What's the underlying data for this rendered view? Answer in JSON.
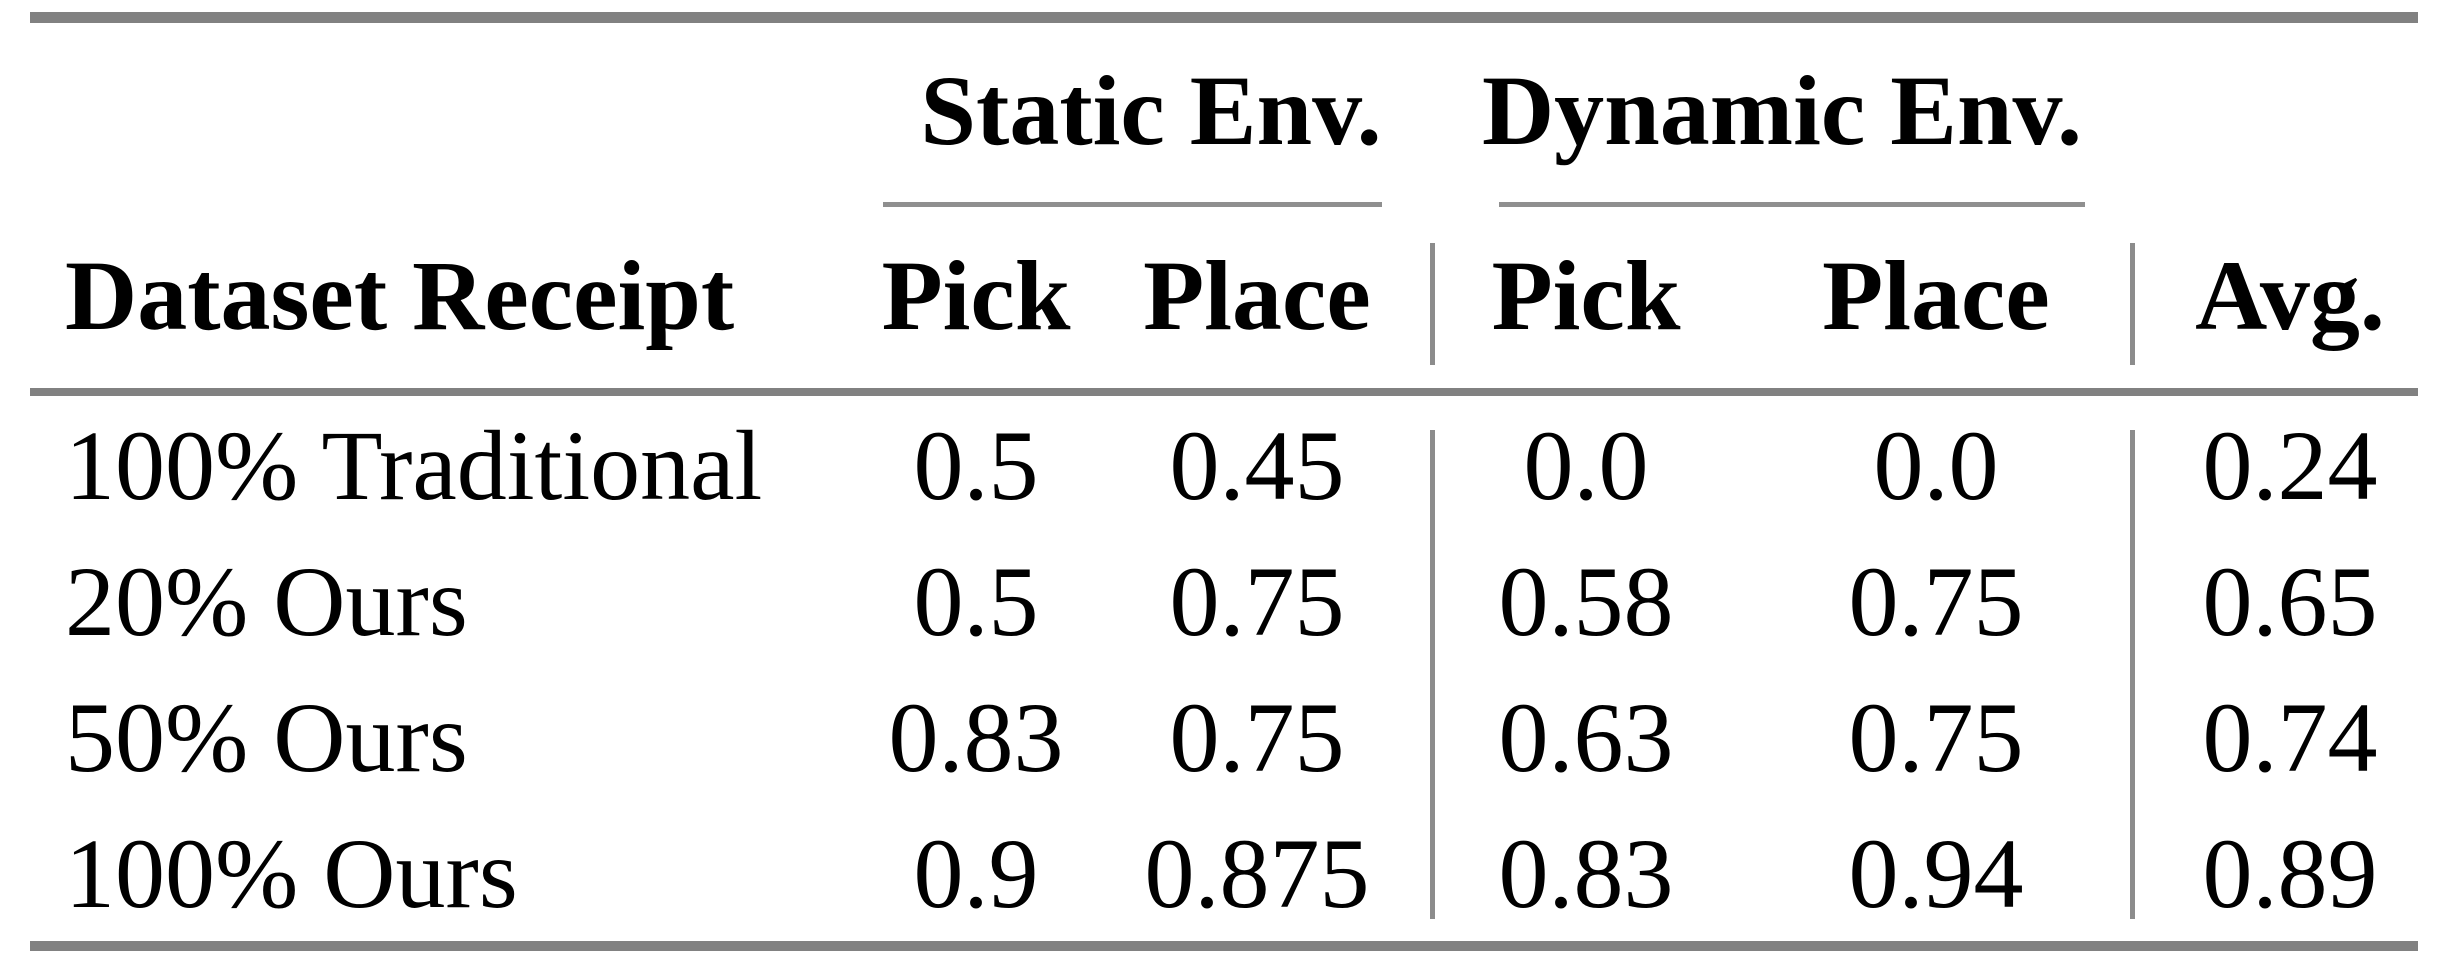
{
  "table": {
    "group_headers": {
      "static": "Static Env.",
      "dynamic": "Dynamic Env."
    },
    "column_headers": {
      "row_label": "Dataset Receipt",
      "static_pick": "Pick",
      "static_place": "Place",
      "dynamic_pick": "Pick",
      "dynamic_place": "Place",
      "avg": "Avg."
    },
    "rows": [
      {
        "label": "100% Traditional",
        "static_pick": "0.5",
        "static_place": "0.45",
        "dynamic_pick": "0.0",
        "dynamic_place": "0.0",
        "avg": "0.24"
      },
      {
        "label": "20% Ours",
        "static_pick": "0.5",
        "static_place": "0.75",
        "dynamic_pick": "0.58",
        "dynamic_place": "0.75",
        "avg": "0.65"
      },
      {
        "label": "50% Ours",
        "static_pick": "0.83",
        "static_place": "0.75",
        "dynamic_pick": "0.63",
        "dynamic_place": "0.75",
        "avg": "0.74"
      },
      {
        "label": "100% Ours",
        "static_pick": "0.9",
        "static_place": "0.875",
        "dynamic_pick": "0.83",
        "dynamic_place": "0.94",
        "avg": "0.89"
      }
    ],
    "colors": {
      "rule_thick": "#818181",
      "rule_thin": "#8f8f8f",
      "text": "#000000"
    }
  },
  "chart_data": {
    "type": "table",
    "title": "",
    "column_groups": [
      "Static Env.",
      "Dynamic Env."
    ],
    "columns": [
      "Dataset Receipt",
      "Static Env. Pick",
      "Static Env. Place",
      "Dynamic Env. Pick",
      "Dynamic Env. Place",
      "Avg."
    ],
    "rows": [
      [
        "100% Traditional",
        0.5,
        0.45,
        0.0,
        0.0,
        0.24
      ],
      [
        "20% Ours",
        0.5,
        0.75,
        0.58,
        0.75,
        0.65
      ],
      [
        "50% Ours",
        0.83,
        0.75,
        0.63,
        0.75,
        0.74
      ],
      [
        "100% Ours",
        0.9,
        0.875,
        0.83,
        0.94,
        0.89
      ]
    ]
  }
}
